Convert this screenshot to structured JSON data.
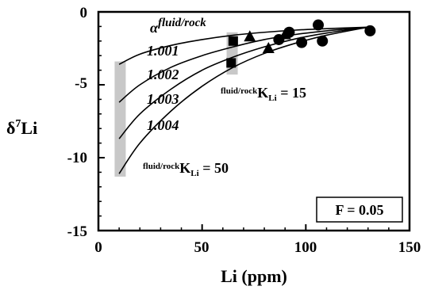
{
  "chart_data": {
    "type": "scatter",
    "title": "",
    "xlabel": "Li (ppm)",
    "ylabel_prefix": "δ",
    "ylabel_sup": "7",
    "ylabel_main": "Li",
    "xlim": [
      0,
      150
    ],
    "ylim": [
      -15,
      0
    ],
    "x_ticks": [
      0,
      50,
      100,
      150
    ],
    "x_tick_labels": [
      "0",
      "50",
      "100",
      "150"
    ],
    "y_ticks": [
      0,
      -5,
      -10,
      -15
    ],
    "y_tick_labels": [
      "0",
      "-5",
      "-10",
      "-15"
    ],
    "grid": false,
    "curves": [
      {
        "label": "1.001",
        "points": [
          [
            10,
            -3.6
          ],
          [
            20,
            -2.9
          ],
          [
            35,
            -2.3
          ],
          [
            50,
            -1.9
          ],
          [
            65,
            -1.6
          ],
          [
            80,
            -1.4
          ],
          [
            95,
            -1.25
          ],
          [
            110,
            -1.15
          ],
          [
            130,
            -1.05
          ]
        ]
      },
      {
        "label": "1.002",
        "points": [
          [
            10,
            -6.2
          ],
          [
            20,
            -5.0
          ],
          [
            35,
            -3.8
          ],
          [
            50,
            -3.0
          ],
          [
            65,
            -2.4
          ],
          [
            80,
            -1.9
          ],
          [
            95,
            -1.55
          ],
          [
            110,
            -1.3
          ],
          [
            130,
            -1.05
          ]
        ]
      },
      {
        "label": "1.003",
        "points": [
          [
            10,
            -8.7
          ],
          [
            20,
            -7.0
          ],
          [
            35,
            -5.3
          ],
          [
            50,
            -4.0
          ],
          [
            65,
            -3.1
          ],
          [
            80,
            -2.4
          ],
          [
            95,
            -1.85
          ],
          [
            110,
            -1.45
          ],
          [
            130,
            -1.05
          ]
        ]
      },
      {
        "label": "1.004",
        "points": [
          [
            10,
            -11.1
          ],
          [
            20,
            -9.0
          ],
          [
            35,
            -6.8
          ],
          [
            50,
            -5.1
          ],
          [
            65,
            -3.8
          ],
          [
            80,
            -2.85
          ],
          [
            95,
            -2.15
          ],
          [
            110,
            -1.6
          ],
          [
            130,
            -1.05
          ]
        ]
      }
    ],
    "gray_bars": [
      {
        "x": 10.5,
        "y_top": -3.4,
        "y_bottom": -11.3
      },
      {
        "x": 64.5,
        "y_top": -1.4,
        "y_bottom": -4.3
      }
    ],
    "points": {
      "squares": [
        [
          65,
          -2.0
        ],
        [
          64,
          -3.5
        ]
      ],
      "triangles": [
        [
          73,
          -1.7
        ],
        [
          82,
          -2.5
        ],
        [
          90,
          -1.55
        ]
      ],
      "circles": [
        [
          87,
          -1.9
        ],
        [
          92,
          -1.4
        ],
        [
          98,
          -2.1
        ],
        [
          106,
          -0.9
        ],
        [
          108,
          -2.0
        ],
        [
          131,
          -1.3
        ]
      ]
    },
    "annotations": {
      "alpha_symbol": "α",
      "alpha_sup": "fluid/rock",
      "k_top_pre": "fluid/rock",
      "k_top_main": "K",
      "k_top_sub": "Li",
      "k_top_val": " = 15",
      "k_bot_pre": "fluid/rock",
      "k_bot_main": "K",
      "k_bot_sub": "Li",
      "k_bot_val": " = 50",
      "f_box": "F = 0.05"
    }
  }
}
